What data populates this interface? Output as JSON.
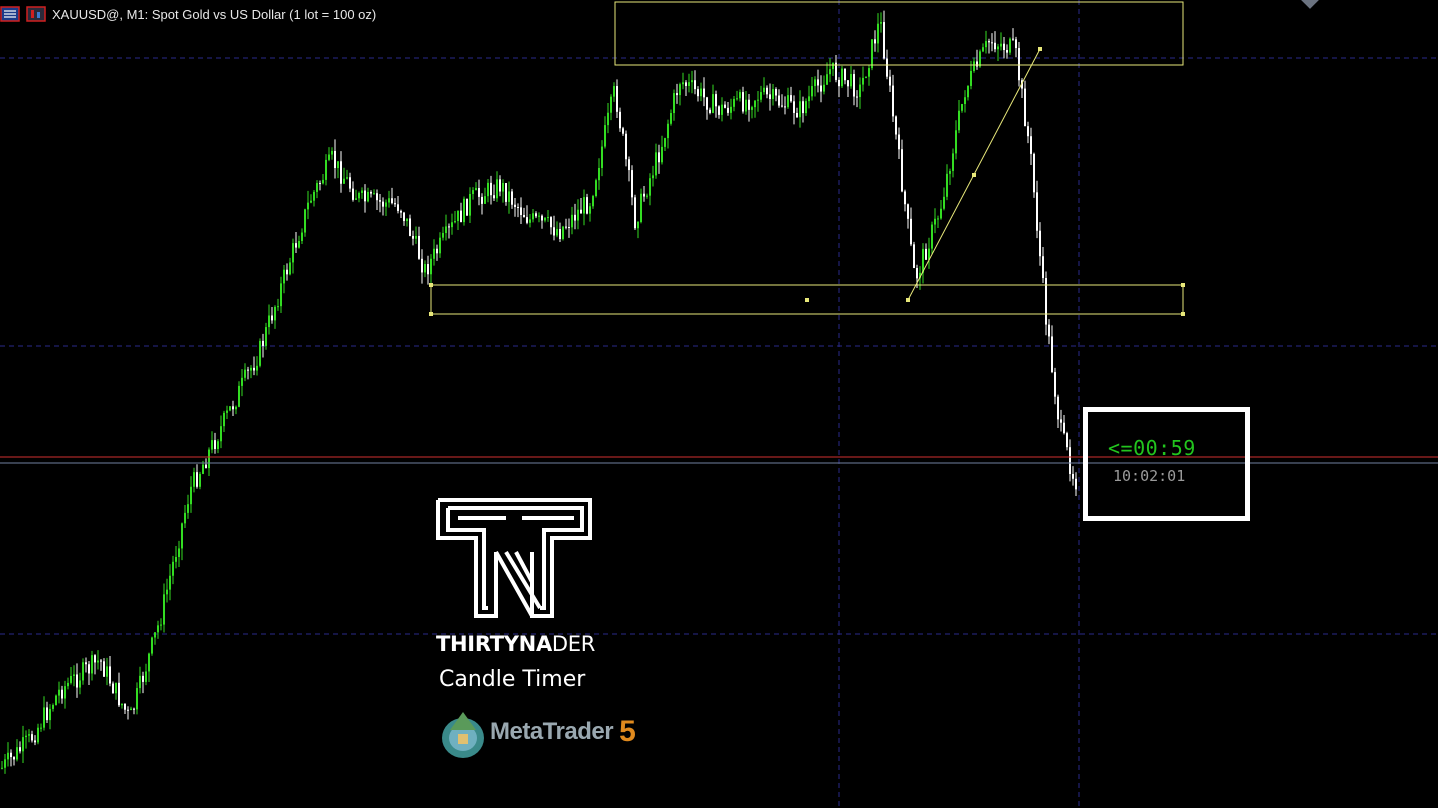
{
  "window": {
    "title": "XAUUSD@, M1:  Spot Gold vs US Dollar (1 lot = 100 oz)"
  },
  "colors": {
    "background": "#000000",
    "bull_candle": "#33dd22",
    "bear_candle": "#ffffff",
    "grid": "#2a2a8a",
    "bid_line": "#d03030",
    "ask_line": "#6f7fa0",
    "drawing_objects": "#e8e87a",
    "timer_countdown": "#22c51e",
    "timer_clock": "#9a9a9a"
  },
  "candle_timer": {
    "countdown": "<=00:59",
    "server_time": "10:02:01"
  },
  "branding": {
    "name_bold": "THIRTYNA",
    "name_light": "DER",
    "product": "Candle Timer",
    "platform": "MetaTrader",
    "platform_version": "5"
  },
  "icons": {
    "chart_window": "chart-window-icon",
    "chart_properties": "chart-properties-icon"
  }
}
